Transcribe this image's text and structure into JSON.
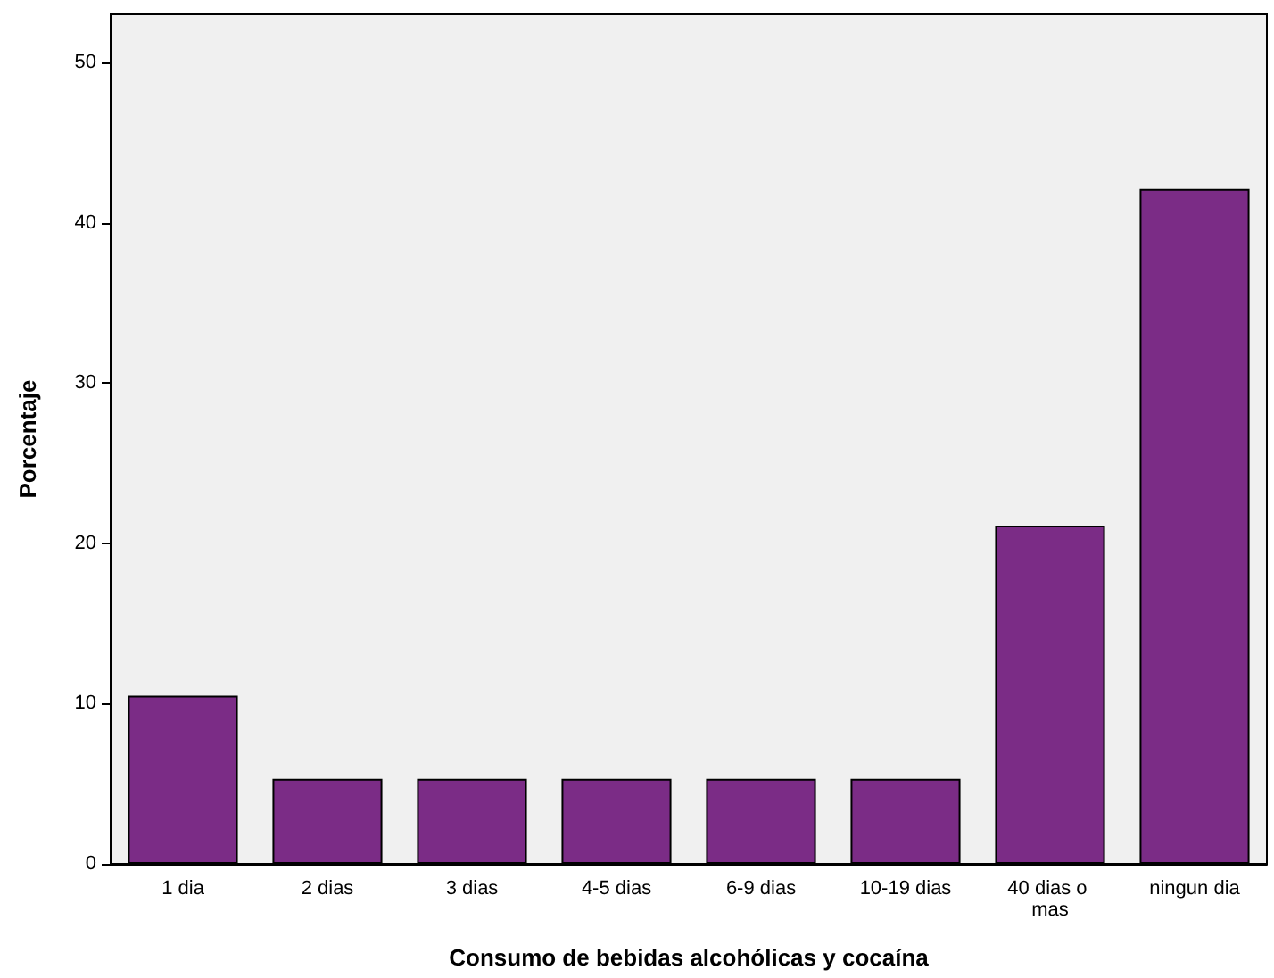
{
  "chart_data": {
    "type": "bar",
    "xlabel": "Consumo de bebidas alcohólicas y cocaína",
    "ylabel": "Porcentaje",
    "categories": [
      "1 dia",
      "2 dias",
      "3 dias",
      "4-5 dias",
      "6-9 dias",
      "10-19 dias",
      "40 dias o mas",
      "ningun dia"
    ],
    "values": [
      10.5,
      5.3,
      5.3,
      5.3,
      5.3,
      5.3,
      21.1,
      42.1
    ],
    "color": "#7b2c86",
    "ylim": [
      0,
      53
    ],
    "yticks": [
      0,
      10,
      20,
      30,
      40,
      50
    ],
    "grid": false
  }
}
